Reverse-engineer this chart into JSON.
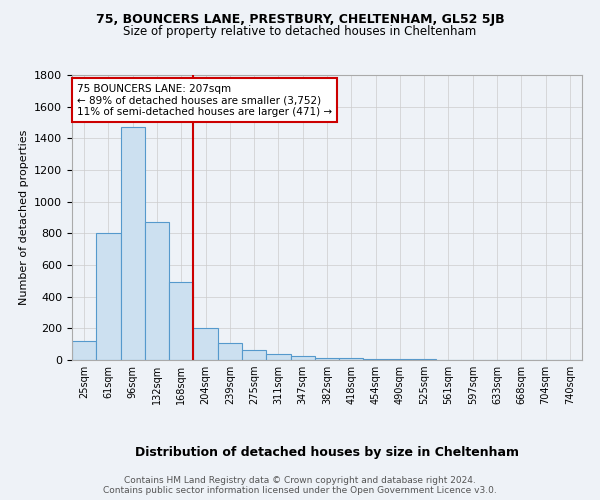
{
  "title1": "75, BOUNCERS LANE, PRESTBURY, CHELTENHAM, GL52 5JB",
  "title2": "Size of property relative to detached houses in Cheltenham",
  "xlabel": "Distribution of detached houses by size in Cheltenham",
  "ylabel": "Number of detached properties",
  "categories": [
    "25sqm",
    "61sqm",
    "96sqm",
    "132sqm",
    "168sqm",
    "204sqm",
    "239sqm",
    "275sqm",
    "311sqm",
    "347sqm",
    "382sqm",
    "418sqm",
    "454sqm",
    "490sqm",
    "525sqm",
    "561sqm",
    "597sqm",
    "633sqm",
    "668sqm",
    "704sqm",
    "740sqm"
  ],
  "values": [
    120,
    800,
    1470,
    870,
    490,
    200,
    110,
    65,
    35,
    25,
    15,
    10,
    8,
    5,
    4,
    3,
    2,
    1,
    1,
    0,
    0
  ],
  "bar_color": "#cce0f0",
  "bar_edge_color": "#5599cc",
  "vline_x_idx": 5,
  "vline_color": "#cc0000",
  "annotation_line1": "75 BOUNCERS LANE: 207sqm",
  "annotation_line2": "← 89% of detached houses are smaller (3,752)",
  "annotation_line3": "11% of semi-detached houses are larger (471) →",
  "annotation_box_color": "white",
  "annotation_box_edge": "#cc0000",
  "ylim": [
    0,
    1800
  ],
  "yticks": [
    0,
    200,
    400,
    600,
    800,
    1000,
    1200,
    1400,
    1600,
    1800
  ],
  "footnote": "Contains HM Land Registry data © Crown copyright and database right 2024.\nContains public sector information licensed under the Open Government Licence v3.0.",
  "bg_color": "#eef2f7"
}
